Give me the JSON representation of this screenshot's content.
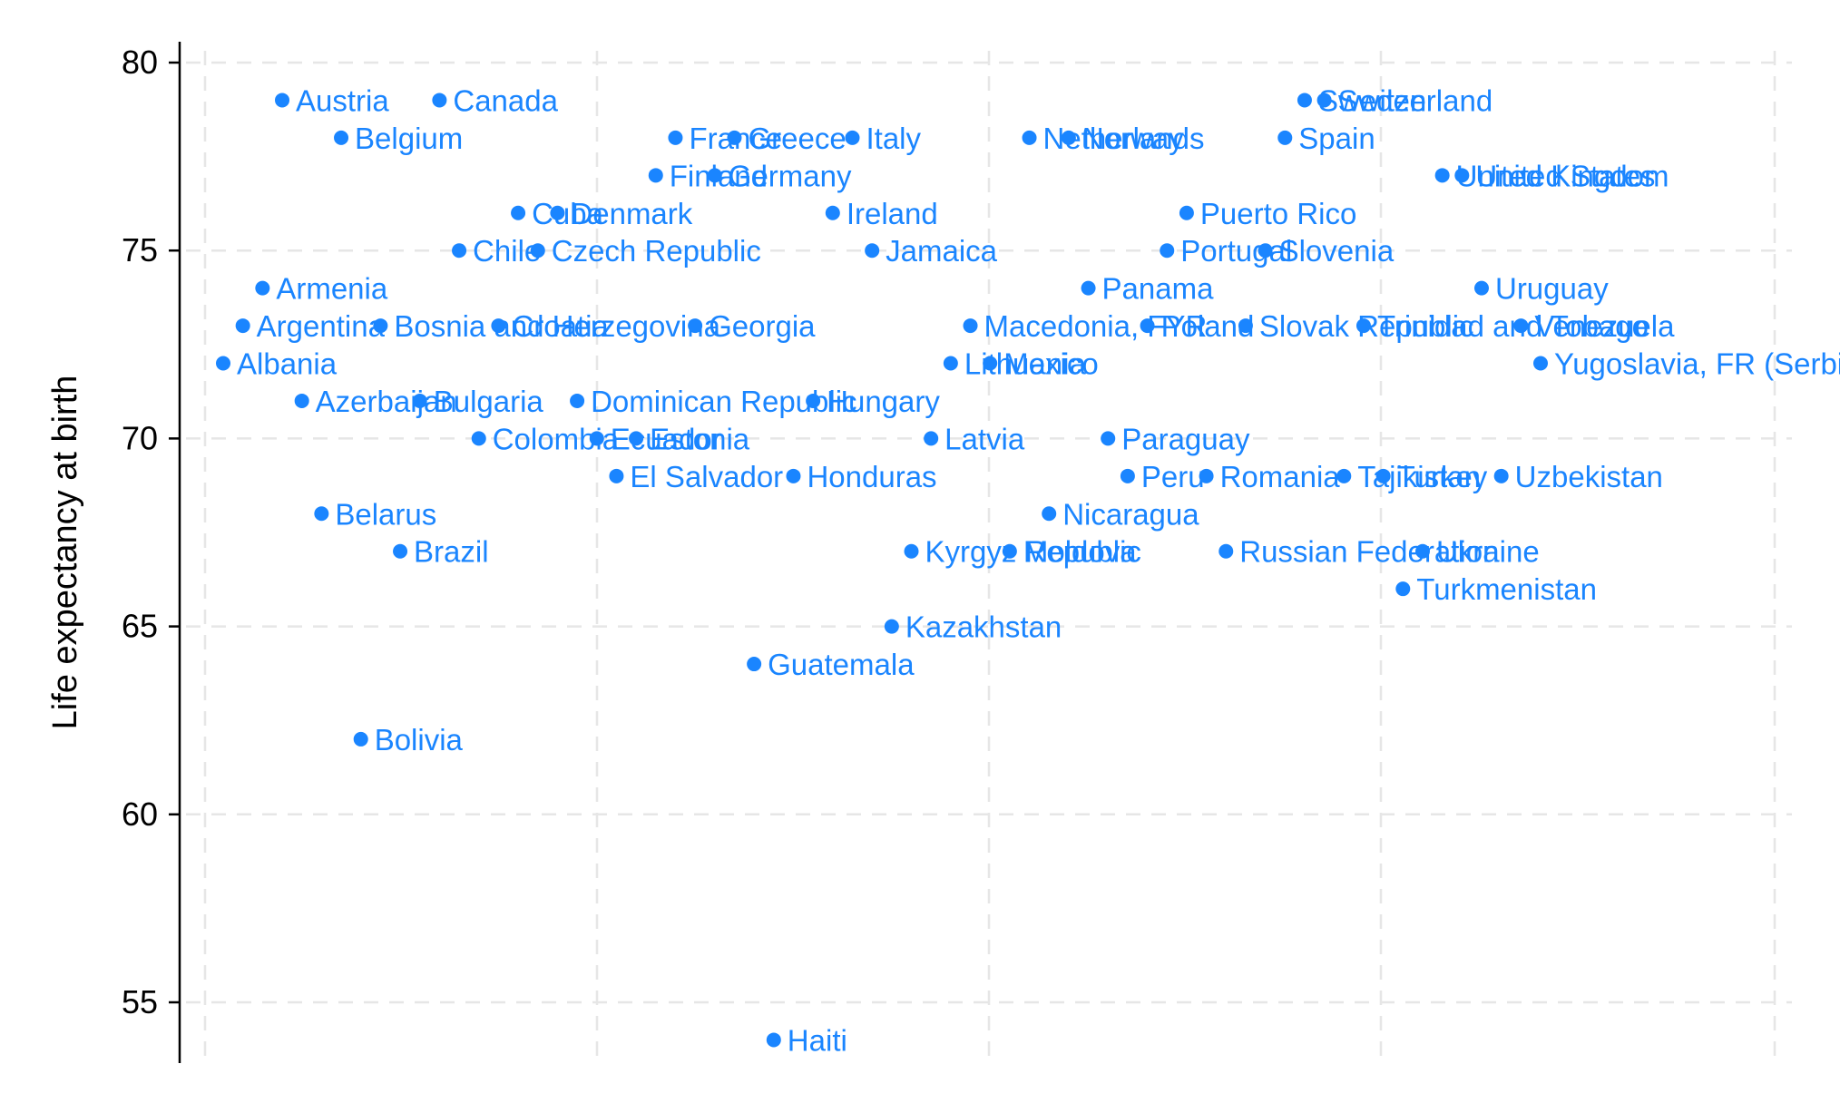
{
  "chart_data": {
    "type": "scatter",
    "title": "",
    "xlabel": "",
    "ylabel": "Life expectancy at birth",
    "ylim": [
      53.5,
      81
    ],
    "yticks": [
      55,
      60,
      65,
      70,
      75,
      80
    ],
    "xlim": [
      0,
      80
    ],
    "x_axis_shown": false,
    "grid": true,
    "marker_color": "#1A85FF",
    "label_color": "#1A85FF",
    "points": [
      {
        "label": "Albania",
        "x": 1,
        "y": 72
      },
      {
        "label": "Argentina",
        "x": 2,
        "y": 73
      },
      {
        "label": "Armenia",
        "x": 3,
        "y": 74
      },
      {
        "label": "Austria",
        "x": 4,
        "y": 79
      },
      {
        "label": "Azerbaijan",
        "x": 5,
        "y": 71
      },
      {
        "label": "Belarus",
        "x": 6,
        "y": 68
      },
      {
        "label": "Belgium",
        "x": 7,
        "y": 78
      },
      {
        "label": "Bolivia",
        "x": 8,
        "y": 62
      },
      {
        "label": "Bosnia and Herzegovina",
        "x": 9,
        "y": 73
      },
      {
        "label": "Brazil",
        "x": 10,
        "y": 67
      },
      {
        "label": "Bulgaria",
        "x": 11,
        "y": 71
      },
      {
        "label": "Canada",
        "x": 12,
        "y": 79
      },
      {
        "label": "Chile",
        "x": 13,
        "y": 75
      },
      {
        "label": "Colombia",
        "x": 14,
        "y": 70
      },
      {
        "label": "Croatia",
        "x": 15,
        "y": 73
      },
      {
        "label": "Cuba",
        "x": 16,
        "y": 76
      },
      {
        "label": "Czech Republic",
        "x": 17,
        "y": 75
      },
      {
        "label": "Denmark",
        "x": 18,
        "y": 76
      },
      {
        "label": "Dominican Republic",
        "x": 19,
        "y": 71
      },
      {
        "label": "Ecuador",
        "x": 20,
        "y": 70
      },
      {
        "label": "El Salvador",
        "x": 21,
        "y": 69
      },
      {
        "label": "Estonia",
        "x": 22,
        "y": 70
      },
      {
        "label": "Finland",
        "x": 23,
        "y": 77
      },
      {
        "label": "France",
        "x": 24,
        "y": 78
      },
      {
        "label": "Georgia",
        "x": 25,
        "y": 73
      },
      {
        "label": "Germany",
        "x": 26,
        "y": 77
      },
      {
        "label": "Greece",
        "x": 27,
        "y": 78
      },
      {
        "label": "Guatemala",
        "x": 28,
        "y": 64
      },
      {
        "label": "Haiti",
        "x": 29,
        "y": 54
      },
      {
        "label": "Honduras",
        "x": 30,
        "y": 69
      },
      {
        "label": "Hungary",
        "x": 31,
        "y": 71
      },
      {
        "label": "Ireland",
        "x": 32,
        "y": 76
      },
      {
        "label": "Italy",
        "x": 33,
        "y": 78
      },
      {
        "label": "Jamaica",
        "x": 34,
        "y": 75
      },
      {
        "label": "Kazakhstan",
        "x": 35,
        "y": 65
      },
      {
        "label": "Kyrgyz Republic",
        "x": 36,
        "y": 67
      },
      {
        "label": "Latvia",
        "x": 37,
        "y": 70
      },
      {
        "label": "Lithuania",
        "x": 38,
        "y": 72
      },
      {
        "label": "Macedonia, FYR",
        "x": 39,
        "y": 73
      },
      {
        "label": "Mexico",
        "x": 40,
        "y": 72
      },
      {
        "label": "Moldova",
        "x": 41,
        "y": 67
      },
      {
        "label": "Netherlands",
        "x": 42,
        "y": 78
      },
      {
        "label": "Nicaragua",
        "x": 43,
        "y": 68
      },
      {
        "label": "Norway",
        "x": 44,
        "y": 78
      },
      {
        "label": "Panama",
        "x": 45,
        "y": 74
      },
      {
        "label": "Paraguay",
        "x": 46,
        "y": 70
      },
      {
        "label": "Peru",
        "x": 47,
        "y": 69
      },
      {
        "label": "Poland",
        "x": 48,
        "y": 73
      },
      {
        "label": "Portugal",
        "x": 49,
        "y": 75
      },
      {
        "label": "Puerto Rico",
        "x": 50,
        "y": 76
      },
      {
        "label": "Romania",
        "x": 51,
        "y": 69
      },
      {
        "label": "Russian Federation",
        "x": 52,
        "y": 67
      },
      {
        "label": "Slovak Republic",
        "x": 53,
        "y": 73
      },
      {
        "label": "Slovenia",
        "x": 54,
        "y": 75
      },
      {
        "label": "Spain",
        "x": 55,
        "y": 78
      },
      {
        "label": "Sweden",
        "x": 56,
        "y": 79
      },
      {
        "label": "Switzerland",
        "x": 57,
        "y": 79
      },
      {
        "label": "Tajikistan",
        "x": 58,
        "y": 69
      },
      {
        "label": "Trinidad and Tobago",
        "x": 59,
        "y": 73
      },
      {
        "label": "Turkey",
        "x": 60,
        "y": 69
      },
      {
        "label": "Turkmenistan",
        "x": 61,
        "y": 66
      },
      {
        "label": "Ukraine",
        "x": 62,
        "y": 67
      },
      {
        "label": "United Kingdom",
        "x": 63,
        "y": 77
      },
      {
        "label": "United States",
        "x": 64,
        "y": 77
      },
      {
        "label": "Uruguay",
        "x": 65,
        "y": 74
      },
      {
        "label": "Uzbekistan",
        "x": 66,
        "y": 69
      },
      {
        "label": "Venezuela",
        "x": 67,
        "y": 73
      },
      {
        "label": "Yugoslavia, FR (Serbia/Montenegro)",
        "x": 68,
        "y": 72
      }
    ]
  }
}
